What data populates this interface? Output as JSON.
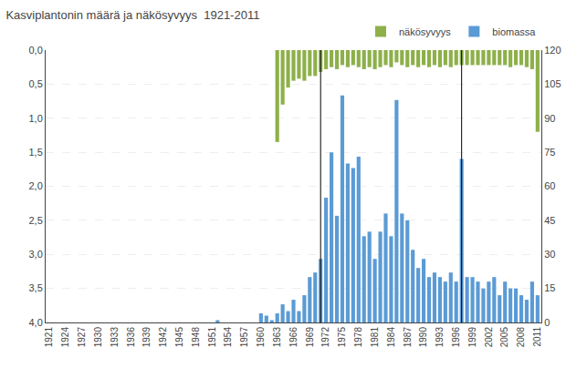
{
  "chart_data": {
    "type": "bar",
    "title": "Kasviplantonin määrä ja näkösyvyys  1921-2011",
    "x": [
      1921,
      1922,
      1923,
      1924,
      1925,
      1926,
      1927,
      1928,
      1929,
      1930,
      1931,
      1932,
      1933,
      1934,
      1935,
      1936,
      1937,
      1938,
      1939,
      1940,
      1941,
      1942,
      1943,
      1944,
      1945,
      1946,
      1947,
      1948,
      1949,
      1950,
      1951,
      1952,
      1953,
      1954,
      1955,
      1956,
      1957,
      1958,
      1959,
      1960,
      1961,
      1962,
      1963,
      1964,
      1965,
      1966,
      1967,
      1968,
      1969,
      1970,
      1971,
      1972,
      1973,
      1974,
      1975,
      1976,
      1977,
      1978,
      1979,
      1980,
      1981,
      1982,
      1983,
      1984,
      1985,
      1986,
      1987,
      1988,
      1989,
      1990,
      1991,
      1992,
      1993,
      1994,
      1995,
      1996,
      1997,
      1998,
      1999,
      2000,
      2001,
      2002,
      2003,
      2004,
      2005,
      2006,
      2007,
      2008,
      2009,
      2010,
      2011
    ],
    "series": [
      {
        "name": "näkösyvyys",
        "color": "#8db04a",
        "axis": "y",
        "values": [
          null,
          null,
          null,
          null,
          null,
          null,
          null,
          null,
          null,
          null,
          null,
          null,
          null,
          null,
          null,
          null,
          null,
          null,
          null,
          null,
          null,
          null,
          null,
          null,
          null,
          null,
          null,
          null,
          null,
          null,
          null,
          null,
          null,
          null,
          null,
          null,
          null,
          null,
          null,
          null,
          null,
          null,
          1.35,
          0.8,
          0.55,
          0.45,
          0.42,
          0.45,
          0.38,
          0.38,
          0.32,
          0.28,
          0.25,
          0.28,
          0.22,
          0.25,
          0.22,
          0.25,
          0.28,
          0.25,
          0.28,
          0.25,
          0.22,
          0.25,
          0.18,
          0.22,
          0.25,
          0.22,
          0.25,
          0.22,
          0.25,
          0.22,
          0.25,
          0.22,
          0.25,
          0.22,
          0.22,
          0.22,
          0.22,
          0.22,
          0.22,
          0.22,
          0.22,
          0.22,
          0.22,
          0.25,
          0.22,
          0.22,
          0.25,
          0.28,
          1.2
        ]
      },
      {
        "name": "biomassa",
        "color": "#5b9bd5",
        "axis": "y2",
        "values": [
          0,
          0,
          0,
          0,
          0,
          0,
          0,
          0,
          0,
          0,
          0,
          0,
          0,
          0,
          0,
          0,
          0,
          0,
          0,
          0,
          0,
          0,
          0,
          0,
          0,
          0,
          0,
          0,
          0,
          0,
          0,
          1,
          0,
          0,
          0,
          0,
          0,
          0,
          0,
          4,
          3,
          1,
          4,
          8,
          5,
          10,
          5,
          12,
          20,
          22,
          28,
          55,
          75,
          47,
          100,
          70,
          68,
          73,
          38,
          40,
          28,
          40,
          48,
          38,
          98,
          48,
          45,
          32,
          24,
          28,
          20,
          22,
          20,
          18,
          22,
          18,
          72,
          20,
          20,
          18,
          15,
          18,
          20,
          12,
          18,
          15,
          15,
          12,
          10,
          18,
          12
        ]
      }
    ],
    "xlim": [
      1920.3,
      2011.7
    ],
    "xticks": [
      1921,
      1924,
      1927,
      1930,
      1933,
      1936,
      1939,
      1942,
      1945,
      1948,
      1951,
      1954,
      1957,
      1960,
      1963,
      1966,
      1969,
      1972,
      1975,
      1978,
      1981,
      1984,
      1987,
      1990,
      1993,
      1996,
      1999,
      2002,
      2005,
      2008,
      2011
    ],
    "ylim": [
      4.0,
      0.0
    ],
    "yticks": [
      {
        "value": 0.0,
        "label": "0,0"
      },
      {
        "value": 0.5,
        "label": "0,5"
      },
      {
        "value": 1.0,
        "label": "1,0"
      },
      {
        "value": 1.5,
        "label": "1,5"
      },
      {
        "value": 2.0,
        "label": "2,0"
      },
      {
        "value": 2.5,
        "label": "2,5"
      },
      {
        "value": 3.0,
        "label": "3,0"
      },
      {
        "value": 3.5,
        "label": "3,5"
      },
      {
        "value": 4.0,
        "label": "4,0"
      }
    ],
    "y2lim": [
      0,
      120
    ],
    "y2ticks": [
      0,
      15,
      30,
      45,
      60,
      75,
      90,
      105,
      120
    ],
    "vlines": [
      1971,
      1997
    ],
    "grid": true,
    "legend": "upper right"
  }
}
